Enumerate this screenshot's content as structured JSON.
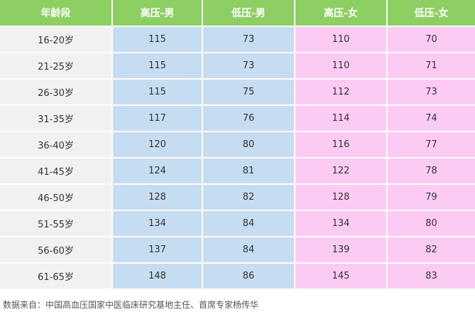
{
  "table": {
    "header": [
      "年龄段",
      "高压-男",
      "低压-男",
      "高压-女",
      "低压-女"
    ],
    "rows": [
      [
        "16-20岁",
        115,
        73,
        110,
        70
      ],
      [
        "21-25岁",
        115,
        73,
        110,
        71
      ],
      [
        "26-30岁",
        115,
        75,
        112,
        73
      ],
      [
        "31-35岁",
        117,
        76,
        114,
        74
      ],
      [
        "36-40岁",
        120,
        80,
        116,
        77
      ],
      [
        "41-45岁",
        124,
        81,
        122,
        78
      ],
      [
        "46-50岁",
        128,
        82,
        128,
        79
      ],
      [
        "51-55岁",
        134,
        84,
        134,
        80
      ],
      [
        "56-60岁",
        137,
        84,
        139,
        82
      ],
      [
        "61-65岁",
        148,
        86,
        145,
        83
      ]
    ]
  },
  "footer": "数据来自：中国高血压国家中医临床研究基地主任、首席专家杨传华"
}
